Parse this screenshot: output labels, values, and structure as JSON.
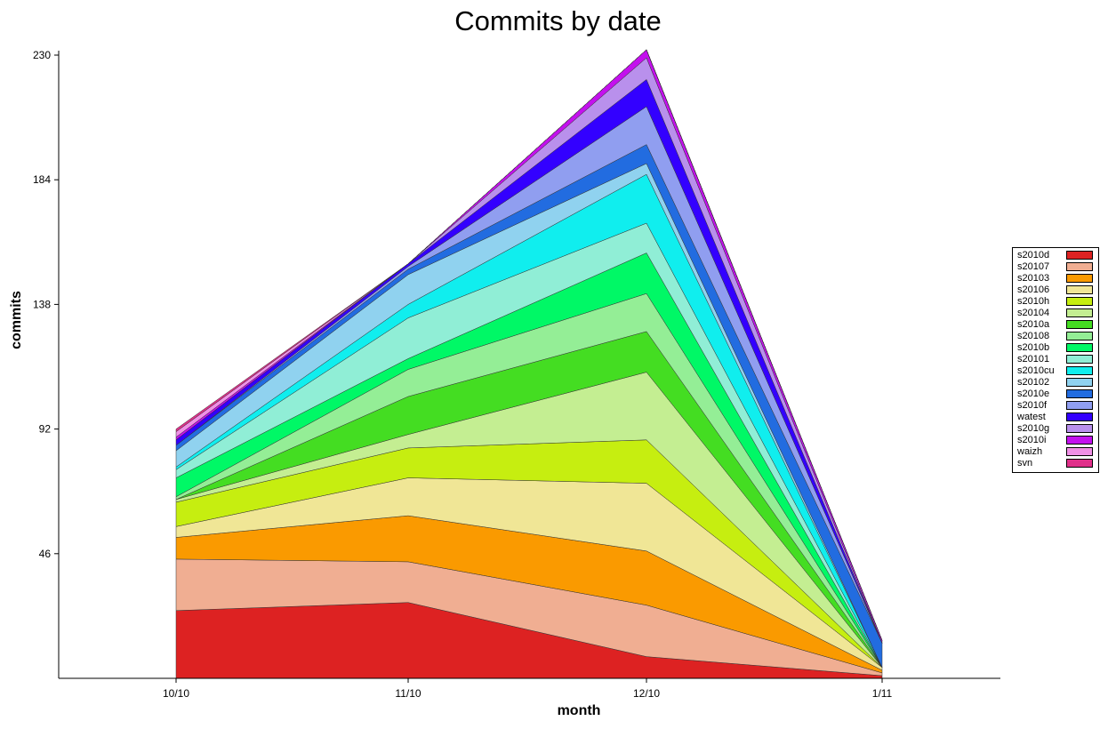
{
  "chart_data": {
    "type": "area",
    "stacked": true,
    "title": "Commits by date",
    "xlabel": "month",
    "ylabel": "commits",
    "categories": [
      "10/10",
      "11/10",
      "12/10",
      "1/11"
    ],
    "y_ticks": [
      46,
      92,
      138,
      184,
      230
    ],
    "ylim": [
      0,
      230
    ],
    "grid": false,
    "legend_position": "right",
    "series": [
      {
        "name": "s2010d",
        "color": "#dd2222",
        "values": [
          25,
          28,
          8,
          1
        ]
      },
      {
        "name": "s20107",
        "color": "#f0ae92",
        "values": [
          19,
          15,
          19,
          1
        ]
      },
      {
        "name": "s20103",
        "color": "#fa9a00",
        "values": [
          8,
          17,
          20,
          1
        ]
      },
      {
        "name": "s20106",
        "color": "#f0e696",
        "values": [
          4,
          14,
          25,
          1
        ]
      },
      {
        "name": "s2010h",
        "color": "#c6ee10",
        "values": [
          9,
          11,
          16,
          0
        ]
      },
      {
        "name": "s20104",
        "color": "#c4ee92",
        "values": [
          1,
          5,
          25,
          0
        ]
      },
      {
        "name": "s2010a",
        "color": "#44dd22",
        "values": [
          0,
          14,
          15,
          0
        ]
      },
      {
        "name": "s20108",
        "color": "#94ee96",
        "values": [
          1,
          10,
          14,
          0
        ]
      },
      {
        "name": "s2010b",
        "color": "#00f866",
        "values": [
          7,
          4,
          15,
          0
        ]
      },
      {
        "name": "s20101",
        "color": "#90eed6",
        "values": [
          3,
          15,
          11,
          0
        ]
      },
      {
        "name": "s2010cu",
        "color": "#10eeee",
        "values": [
          1,
          5,
          18,
          0
        ]
      },
      {
        "name": "s20102",
        "color": "#90d2ef",
        "values": [
          6,
          11,
          4,
          0
        ]
      },
      {
        "name": "s2010e",
        "color": "#226ce0",
        "values": [
          2,
          2,
          7,
          9
        ]
      },
      {
        "name": "s2010f",
        "color": "#909ef0",
        "values": [
          0,
          1,
          14,
          0
        ]
      },
      {
        "name": "watest",
        "color": "#3300ff",
        "values": [
          2,
          1,
          10,
          0
        ]
      },
      {
        "name": "s2010g",
        "color": "#b990ec",
        "values": [
          0,
          0,
          8,
          0
        ]
      },
      {
        "name": "s2010i",
        "color": "#c410ee",
        "values": [
          1,
          0,
          3,
          1
        ]
      },
      {
        "name": "waizh",
        "color": "#f090e6",
        "values": [
          2,
          0,
          0,
          0
        ]
      },
      {
        "name": "svn",
        "color": "#e0308a",
        "values": [
          1,
          0,
          0,
          0
        ]
      }
    ]
  }
}
